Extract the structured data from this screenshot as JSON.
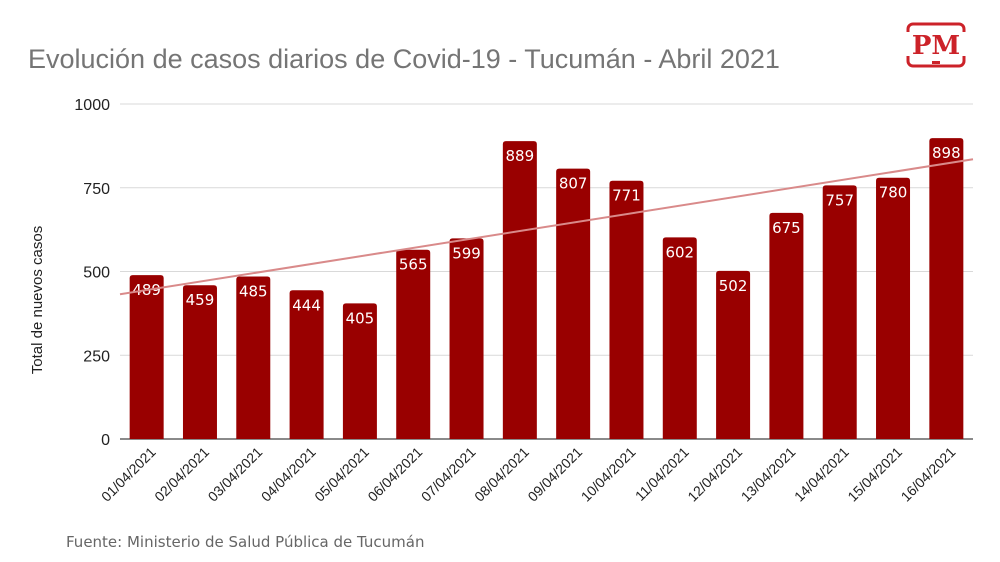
{
  "header": {
    "title": "Evolución de casos diarios de Covid-19 - Tucumán - Abril 2021",
    "logo_text": "PM"
  },
  "footer": {
    "source": "Fuente: Ministerio de Salud Pública de Tucumán"
  },
  "colors": {
    "bar": "#990000",
    "trendline": "#d98a8a",
    "logo": "#cc2229",
    "grid": "#d9d9d9"
  },
  "chart_data": {
    "type": "bar",
    "title": "Evolución de casos diarios de Covid-19 - Tucumán - Abril 2021",
    "xlabel": "",
    "ylabel": "Total de nuevos casos",
    "ylim": [
      0,
      1000
    ],
    "yticks": [
      0,
      250,
      500,
      750,
      1000
    ],
    "grid": true,
    "legend": "none",
    "trendline": {
      "type": "linear",
      "start": 432,
      "end": 835
    },
    "data_labels": "inside-top",
    "categories": [
      "01/04/2021",
      "02/04/2021",
      "03/04/2021",
      "04/04/2021",
      "05/04/2021",
      "06/04/2021",
      "07/04/2021",
      "08/04/2021",
      "09/04/2021",
      "10/04/2021",
      "11/04/2021",
      "12/04/2021",
      "13/04/2021",
      "14/04/2021",
      "15/04/2021",
      "16/04/2021"
    ],
    "values": [
      489,
      459,
      485,
      444,
      405,
      565,
      599,
      889,
      807,
      771,
      602,
      502,
      675,
      757,
      780,
      898
    ]
  }
}
